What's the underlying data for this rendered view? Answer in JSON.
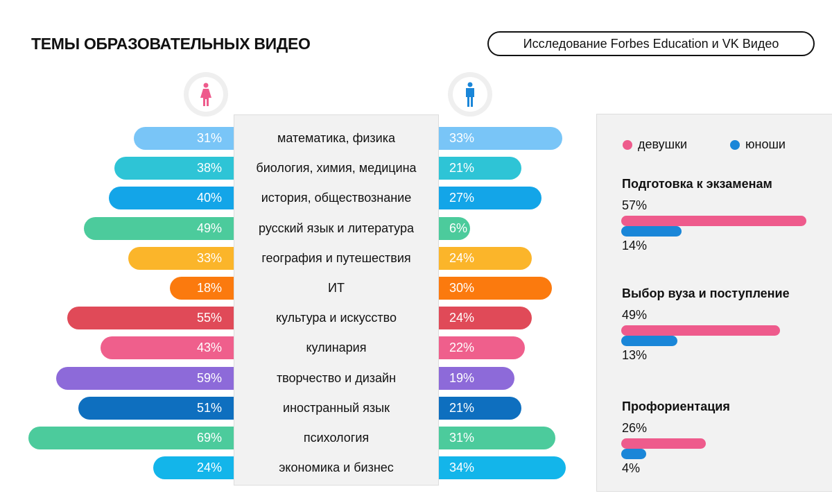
{
  "header": {
    "title": "ТЕМЫ ОБРАЗОВАТЕЛЬНЫХ ВИДЕО",
    "source": "Исследование Forbes Education и VK Видео"
  },
  "icons": {
    "female": "female-person-icon",
    "male": "male-person-icon"
  },
  "colors": {
    "female": "#ee5b8c",
    "male": "#1a86d8"
  },
  "chart_data": [
    {
      "type": "bar",
      "orientation": "horizontal-butterfly",
      "categories": [
        "математика, физика",
        "биология, химия, медицина",
        "история, обществознание",
        "русский язык и литература",
        "география и путешествия",
        "ИТ",
        "культура и искусство",
        "кулинария",
        "творчество и дизайн",
        "иностранный язык",
        "психология",
        "экономика и бизнес"
      ],
      "series": [
        {
          "key": "female",
          "values": [
            31,
            38,
            40,
            49,
            33,
            18,
            55,
            43,
            59,
            51,
            69,
            24
          ],
          "labels": [
            "31%",
            "38%",
            "40%",
            "49%",
            "33%",
            "18%",
            "55%",
            "43%",
            "59%",
            "51%",
            "69%",
            "24%"
          ]
        },
        {
          "key": "male",
          "values": [
            33,
            21,
            27,
            6,
            24,
            30,
            24,
            22,
            19,
            21,
            31,
            34
          ],
          "labels": [
            "33%",
            "21%",
            "27%",
            "6%",
            "24%",
            "30%",
            "24%",
            "22%",
            "19%",
            "21%",
            "31%",
            "34%"
          ]
        }
      ],
      "row_colors": [
        "#79c5f7",
        "#2ec4d6",
        "#13a5e8",
        "#4ccb9c",
        "#fbb52a",
        "#fb7a0e",
        "#e04a58",
        "#ef5f8c",
        "#8d6ad9",
        "#0e6fbf",
        "#4ccb9c",
        "#13b5ea"
      ]
    },
    {
      "type": "bar",
      "orientation": "horizontal",
      "legend": [
        {
          "name": "девушки",
          "color": "#ee5b8c"
        },
        {
          "name": "юноши",
          "color": "#1a86d8"
        }
      ],
      "groups": [
        {
          "title": "Подготовка к экзаменам",
          "female": 57,
          "male": 14,
          "female_label": "57%",
          "male_label": "14%"
        },
        {
          "title": "Выбор вуза и поступление",
          "female": 49,
          "male": 13,
          "female_label": "49%",
          "male_label": "13%"
        },
        {
          "title": "Профориентация",
          "female": 26,
          "male": 4,
          "female_label": "26%",
          "male_label": "4%"
        }
      ]
    }
  ]
}
